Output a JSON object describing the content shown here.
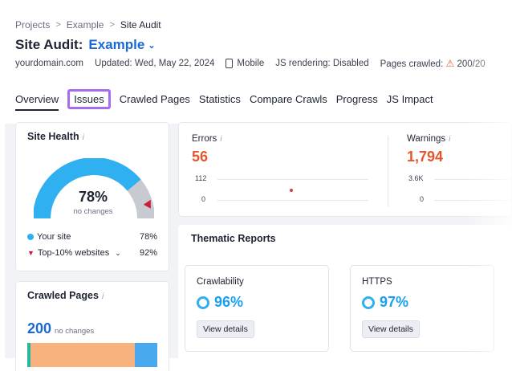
{
  "breadcrumb": [
    "Projects",
    "Example",
    "Site Audit"
  ],
  "header": {
    "title_prefix": "Site Audit:",
    "project": "Example",
    "domain": "yourdomain.com",
    "updated": "Updated: Wed, May 22, 2024",
    "device": "Mobile",
    "js_rendering": "JS rendering: Disabled",
    "pages_crawled": "Pages crawled:",
    "pages_crawled_value": "200/20"
  },
  "tabs": [
    {
      "label": "Overview",
      "active": true
    },
    {
      "label": "Issues",
      "highlighted": true
    },
    {
      "label": "Crawled Pages"
    },
    {
      "label": "Statistics"
    },
    {
      "label": "Compare Crawls"
    },
    {
      "label": "Progress"
    },
    {
      "label": "JS Impact"
    }
  ],
  "site_health": {
    "title": "Site Health",
    "value": "78%",
    "value_fraction": 0.78,
    "sub": "no changes",
    "legend": [
      {
        "label": "Your site",
        "value": "78%"
      },
      {
        "label": "Top-10% websites",
        "value": "92%"
      }
    ]
  },
  "crawled_pages": {
    "title": "Crawled Pages",
    "value": "200",
    "sub": "no changes"
  },
  "errors": {
    "label": "Errors",
    "value": "56",
    "ticks": [
      "112",
      "0"
    ]
  },
  "warnings": {
    "label": "Warnings",
    "value": "1,794",
    "ticks": [
      "3.6K",
      "0"
    ]
  },
  "thematic": {
    "title": "Thematic Reports",
    "reports": [
      {
        "name": "Crawlability",
        "value": "96%",
        "button": "View details"
      },
      {
        "name": "HTTPS",
        "value": "97%",
        "button": "View details"
      }
    ]
  },
  "colors": {
    "accent_blue": "#1a6ad6",
    "gauge_blue": "#2fb0f0",
    "error_orange": "#e2572c",
    "highlight_purple": "#a66cf0",
    "top10_marker": "#c91d3a"
  }
}
